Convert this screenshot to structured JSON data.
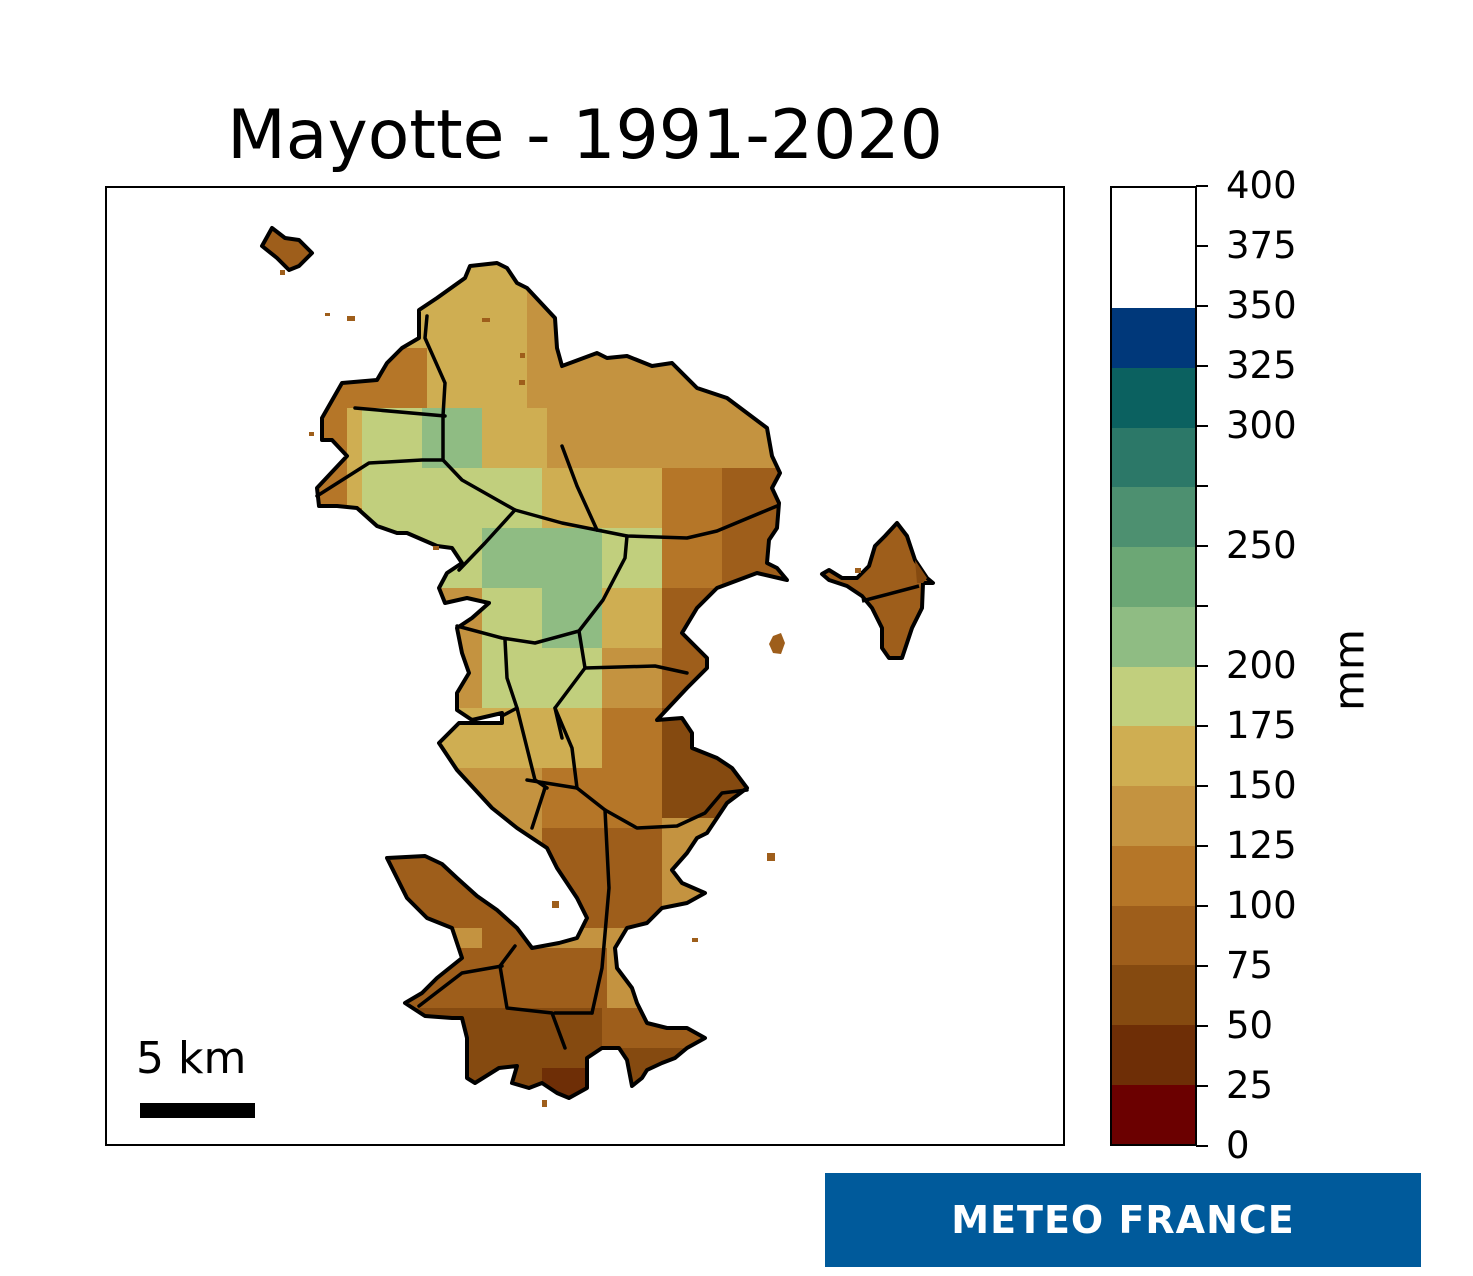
{
  "title": "Mayotte - 1991-2020",
  "scalebar": {
    "label": "5 km"
  },
  "colorbar": {
    "unit": "mm",
    "min": 0,
    "max": 400,
    "ticks": [
      "0",
      "25",
      "50",
      "75",
      "100",
      "125",
      "150",
      "175",
      "200",
      "225",
      "250",
      "275",
      "300",
      "325",
      "350",
      "375",
      "400"
    ],
    "shown_labels": [
      "0",
      "25",
      "50",
      "75",
      "100",
      "125",
      "150",
      "175",
      "200",
      "250",
      "300",
      "325",
      "350",
      "375",
      "400"
    ],
    "classes": [
      {
        "from": 0,
        "to": 25,
        "color": "#6b0000"
      },
      {
        "from": 25,
        "to": 50,
        "color": "#6e2e06"
      },
      {
        "from": 50,
        "to": 75,
        "color": "#854a10"
      },
      {
        "from": 75,
        "to": 100,
        "color": "#9e5e1b"
      },
      {
        "from": 100,
        "to": 125,
        "color": "#b57628"
      },
      {
        "from": 125,
        "to": 150,
        "color": "#c49340"
      },
      {
        "from": 150,
        "to": 175,
        "color": "#cfae52"
      },
      {
        "from": 175,
        "to": 200,
        "color": "#c1cf7d"
      },
      {
        "from": 200,
        "to": 225,
        "color": "#8fbc83"
      },
      {
        "from": 225,
        "to": 250,
        "color": "#6ca775"
      },
      {
        "from": 250,
        "to": 275,
        "color": "#4d9070"
      },
      {
        "from": 275,
        "to": 300,
        "color": "#2c7868"
      },
      {
        "from": 300,
        "to": 325,
        "color": "#0b6160"
      },
      {
        "from": 325,
        "to": 350,
        "color": "#00387a"
      }
    ]
  },
  "logo": {
    "text": "METEO FRANCE",
    "color": "#005a9b"
  }
}
